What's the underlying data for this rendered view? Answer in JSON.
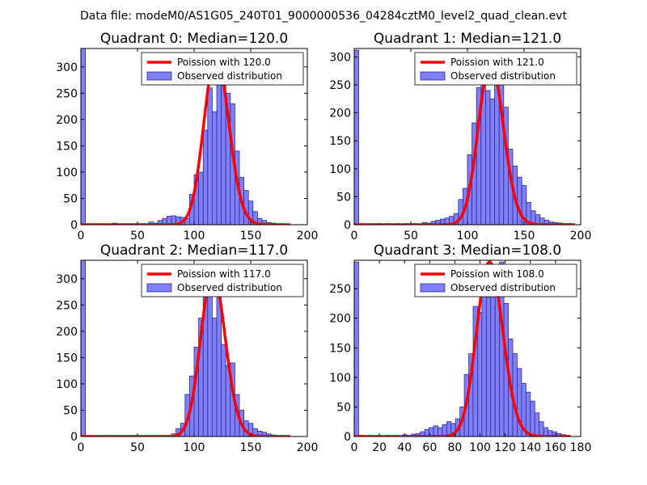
{
  "figure": {
    "suptitle": "Data file: modeM0/AS1G05_240T01_9000000536_04284cztM0_level2_quad_clean.evt"
  },
  "colors": {
    "bar_fill": "#7f7ff7",
    "bar_edge": "#2b2b9b",
    "fit_line": "#ff0000"
  },
  "chart_data": [
    {
      "type": "bar",
      "title": "Quadrant 0: Median=120.0",
      "median": 120.0,
      "xlim": [
        0,
        200
      ],
      "ylim": [
        0,
        335
      ],
      "xticks": [
        0,
        50,
        100,
        150,
        200
      ],
      "yticks": [
        0,
        50,
        100,
        150,
        200,
        250,
        300
      ],
      "legend": {
        "location": "top-right",
        "fit_label": "Poission with 120.0",
        "hist_label": "Observed distribution"
      },
      "bars": [
        {
          "x": 0,
          "y": 335
        },
        {
          "x": 4,
          "y": 2
        },
        {
          "x": 12,
          "y": 2
        },
        {
          "x": 20,
          "y": 2
        },
        {
          "x": 28,
          "y": 3
        },
        {
          "x": 36,
          "y": 2
        },
        {
          "x": 44,
          "y": 2
        },
        {
          "x": 52,
          "y": 2
        },
        {
          "x": 60,
          "y": 5
        },
        {
          "x": 64,
          "y": 3
        },
        {
          "x": 68,
          "y": 8
        },
        {
          "x": 72,
          "y": 12
        },
        {
          "x": 76,
          "y": 16
        },
        {
          "x": 80,
          "y": 17
        },
        {
          "x": 84,
          "y": 15
        },
        {
          "x": 88,
          "y": 14
        },
        {
          "x": 92,
          "y": 12
        },
        {
          "x": 96,
          "y": 58
        },
        {
          "x": 100,
          "y": 95
        },
        {
          "x": 104,
          "y": 100
        },
        {
          "x": 108,
          "y": 180
        },
        {
          "x": 112,
          "y": 260
        },
        {
          "x": 116,
          "y": 215
        },
        {
          "x": 120,
          "y": 322
        },
        {
          "x": 124,
          "y": 265
        },
        {
          "x": 128,
          "y": 250
        },
        {
          "x": 132,
          "y": 230
        },
        {
          "x": 136,
          "y": 140
        },
        {
          "x": 140,
          "y": 90
        },
        {
          "x": 144,
          "y": 65
        },
        {
          "x": 148,
          "y": 45
        },
        {
          "x": 152,
          "y": 25
        },
        {
          "x": 156,
          "y": 12
        },
        {
          "x": 160,
          "y": 8
        },
        {
          "x": 164,
          "y": 4
        },
        {
          "x": 168,
          "y": 3
        },
        {
          "x": 172,
          "y": 2
        },
        {
          "x": 176,
          "y": 2
        }
      ],
      "bar_width": 4,
      "fit_x_range": [
        0,
        185
      ]
    },
    {
      "type": "bar",
      "title": "Quadrant 1: Median=121.0",
      "median": 121.0,
      "xlim": [
        0,
        200
      ],
      "ylim": [
        0,
        315
      ],
      "xticks": [
        0,
        50,
        100,
        150,
        200
      ],
      "yticks": [
        0,
        50,
        100,
        150,
        200,
        250,
        300
      ],
      "legend": {
        "location": "top-right",
        "fit_label": "Poission with 121.0",
        "hist_label": "Observed distribution"
      },
      "bars": [
        {
          "x": 0,
          "y": 312
        },
        {
          "x": 4,
          "y": 2
        },
        {
          "x": 12,
          "y": 2
        },
        {
          "x": 20,
          "y": 2
        },
        {
          "x": 28,
          "y": 2
        },
        {
          "x": 36,
          "y": 2
        },
        {
          "x": 44,
          "y": 2
        },
        {
          "x": 52,
          "y": 2
        },
        {
          "x": 60,
          "y": 4
        },
        {
          "x": 64,
          "y": 3
        },
        {
          "x": 68,
          "y": 6
        },
        {
          "x": 72,
          "y": 8
        },
        {
          "x": 76,
          "y": 10
        },
        {
          "x": 80,
          "y": 12
        },
        {
          "x": 84,
          "y": 15
        },
        {
          "x": 88,
          "y": 20
        },
        {
          "x": 92,
          "y": 45
        },
        {
          "x": 96,
          "y": 65
        },
        {
          "x": 100,
          "y": 125
        },
        {
          "x": 104,
          "y": 182
        },
        {
          "x": 108,
          "y": 245
        },
        {
          "x": 112,
          "y": 260
        },
        {
          "x": 116,
          "y": 240
        },
        {
          "x": 120,
          "y": 225
        },
        {
          "x": 124,
          "y": 292
        },
        {
          "x": 128,
          "y": 270
        },
        {
          "x": 132,
          "y": 210
        },
        {
          "x": 136,
          "y": 135
        },
        {
          "x": 140,
          "y": 105
        },
        {
          "x": 144,
          "y": 85
        },
        {
          "x": 148,
          "y": 70
        },
        {
          "x": 152,
          "y": 40
        },
        {
          "x": 156,
          "y": 25
        },
        {
          "x": 160,
          "y": 18
        },
        {
          "x": 164,
          "y": 12
        },
        {
          "x": 168,
          "y": 8
        },
        {
          "x": 172,
          "y": 5
        },
        {
          "x": 176,
          "y": 4
        },
        {
          "x": 180,
          "y": 3
        },
        {
          "x": 184,
          "y": 2
        },
        {
          "x": 188,
          "y": 2
        }
      ],
      "bar_width": 4,
      "fit_x_range": [
        0,
        195
      ]
    },
    {
      "type": "bar",
      "title": "Quadrant 2: Median=117.0",
      "median": 117.0,
      "xlim": [
        0,
        200
      ],
      "ylim": [
        0,
        335
      ],
      "xticks": [
        0,
        50,
        100,
        150,
        200
      ],
      "yticks": [
        0,
        50,
        100,
        150,
        200,
        250,
        300
      ],
      "legend": {
        "location": "top-right",
        "fit_label": "Poission with 117.0",
        "hist_label": "Observed distribution"
      },
      "bars": [
        {
          "x": 0,
          "y": 335
        },
        {
          "x": 4,
          "y": 2
        },
        {
          "x": 12,
          "y": 2
        },
        {
          "x": 20,
          "y": 2
        },
        {
          "x": 28,
          "y": 2
        },
        {
          "x": 36,
          "y": 2
        },
        {
          "x": 44,
          "y": 2
        },
        {
          "x": 52,
          "y": 2
        },
        {
          "x": 60,
          "y": 2
        },
        {
          "x": 64,
          "y": 2
        },
        {
          "x": 72,
          "y": 2
        },
        {
          "x": 80,
          "y": 5
        },
        {
          "x": 84,
          "y": 15
        },
        {
          "x": 88,
          "y": 25
        },
        {
          "x": 92,
          "y": 80
        },
        {
          "x": 96,
          "y": 115
        },
        {
          "x": 100,
          "y": 170
        },
        {
          "x": 104,
          "y": 225
        },
        {
          "x": 108,
          "y": 295
        },
        {
          "x": 112,
          "y": 310
        },
        {
          "x": 116,
          "y": 225
        },
        {
          "x": 120,
          "y": 275
        },
        {
          "x": 124,
          "y": 175
        },
        {
          "x": 128,
          "y": 135
        },
        {
          "x": 132,
          "y": 140
        },
        {
          "x": 136,
          "y": 80
        },
        {
          "x": 140,
          "y": 50
        },
        {
          "x": 144,
          "y": 30
        },
        {
          "x": 148,
          "y": 25
        },
        {
          "x": 152,
          "y": 15
        },
        {
          "x": 156,
          "y": 10
        },
        {
          "x": 160,
          "y": 8
        },
        {
          "x": 164,
          "y": 5
        },
        {
          "x": 168,
          "y": 3
        },
        {
          "x": 172,
          "y": 2
        },
        {
          "x": 176,
          "y": 2
        }
      ],
      "bar_width": 4,
      "fit_x_range": [
        0,
        185
      ]
    },
    {
      "type": "bar",
      "title": "Quadrant 3: Median=108.0",
      "median": 108.0,
      "xlim": [
        0,
        180
      ],
      "ylim": [
        0,
        298
      ],
      "xticks": [
        0,
        20,
        40,
        60,
        80,
        100,
        120,
        140,
        160,
        180
      ],
      "yticks": [
        0,
        50,
        100,
        150,
        200,
        250
      ],
      "legend": {
        "location": "top-right",
        "fit_label": "Poission with 108.0",
        "hist_label": "Observed distribution"
      },
      "bars": [
        {
          "x": 0,
          "y": 295
        },
        {
          "x": 3.5,
          "y": 2
        },
        {
          "x": 10.5,
          "y": 2
        },
        {
          "x": 17.5,
          "y": 2
        },
        {
          "x": 24.5,
          "y": 2
        },
        {
          "x": 31.5,
          "y": 2
        },
        {
          "x": 38.5,
          "y": 3
        },
        {
          "x": 42,
          "y": 2
        },
        {
          "x": 45.5,
          "y": 4
        },
        {
          "x": 49,
          "y": 5
        },
        {
          "x": 52.5,
          "y": 8
        },
        {
          "x": 56,
          "y": 12
        },
        {
          "x": 59.5,
          "y": 15
        },
        {
          "x": 63,
          "y": 18
        },
        {
          "x": 66.5,
          "y": 15
        },
        {
          "x": 70,
          "y": 20
        },
        {
          "x": 73.5,
          "y": 25
        },
        {
          "x": 77,
          "y": 22
        },
        {
          "x": 80.5,
          "y": 30
        },
        {
          "x": 84,
          "y": 50
        },
        {
          "x": 87.5,
          "y": 105
        },
        {
          "x": 91,
          "y": 140
        },
        {
          "x": 94.5,
          "y": 220
        },
        {
          "x": 98,
          "y": 210
        },
        {
          "x": 101.5,
          "y": 240
        },
        {
          "x": 105,
          "y": 235
        },
        {
          "x": 108.5,
          "y": 280
        },
        {
          "x": 112,
          "y": 280
        },
        {
          "x": 115.5,
          "y": 295
        },
        {
          "x": 119,
          "y": 225
        },
        {
          "x": 122.5,
          "y": 165
        },
        {
          "x": 126,
          "y": 140
        },
        {
          "x": 129.5,
          "y": 115
        },
        {
          "x": 133,
          "y": 90
        },
        {
          "x": 136.5,
          "y": 75
        },
        {
          "x": 140,
          "y": 60
        },
        {
          "x": 143.5,
          "y": 40
        },
        {
          "x": 147,
          "y": 25
        },
        {
          "x": 150.5,
          "y": 15
        },
        {
          "x": 154,
          "y": 10
        },
        {
          "x": 157.5,
          "y": 8
        },
        {
          "x": 161,
          "y": 5
        },
        {
          "x": 164.5,
          "y": 3
        },
        {
          "x": 168,
          "y": 2
        }
      ],
      "bar_width": 3.5,
      "fit_x_range": [
        0,
        172
      ]
    }
  ]
}
